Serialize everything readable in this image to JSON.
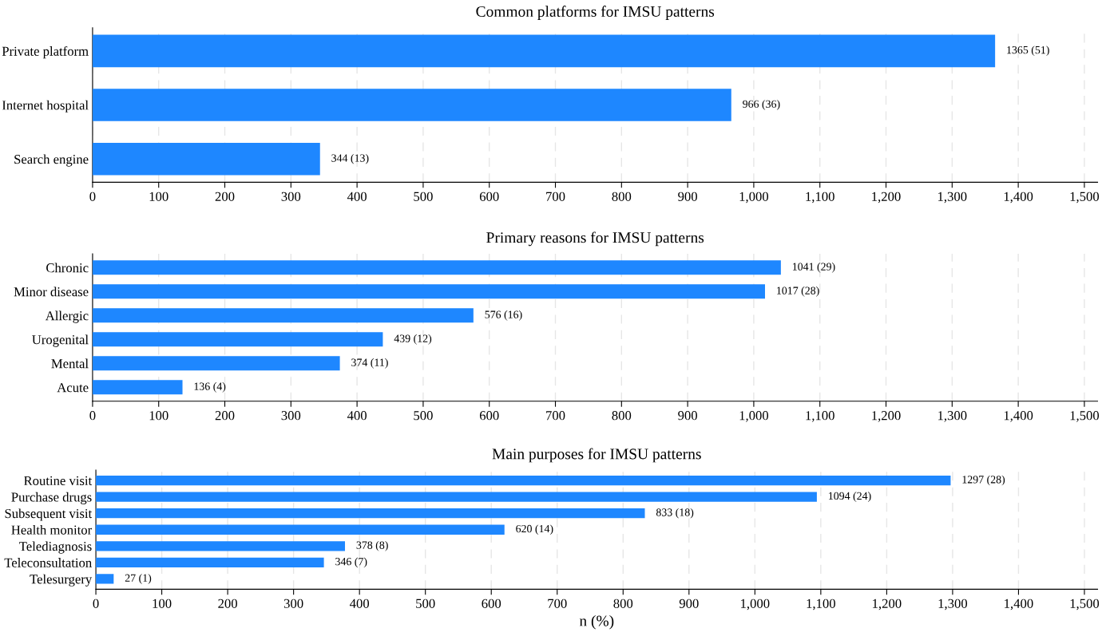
{
  "chart_data": [
    {
      "type": "bar",
      "orientation": "horizontal",
      "title": "Common platforms for IMSU patterns",
      "categories": [
        "Private platform",
        "Internet hospital",
        "Search engine"
      ],
      "values": [
        1365,
        966,
        344
      ],
      "value_labels": [
        "1365 (51)",
        "966 (36)",
        "344 (13)"
      ],
      "color": "#1e87ff",
      "xlim": [
        0,
        1520
      ],
      "xticks": [
        0,
        100,
        200,
        300,
        400,
        500,
        600,
        700,
        800,
        900,
        {
          "value": 1000,
          "label": "1,000"
        },
        {
          "value": 1100,
          "label": "1,100"
        },
        {
          "value": 1200,
          "label": "1,200"
        },
        {
          "value": 1300,
          "label": "1,300"
        },
        {
          "value": 1400,
          "label": "1,400"
        },
        {
          "value": 1500,
          "label": "1,500"
        }
      ],
      "grid": "x",
      "legend": false
    },
    {
      "type": "bar",
      "orientation": "horizontal",
      "title": "Primary reasons for IMSU patterns",
      "categories": [
        "Chronic",
        "Minor disease",
        "Allergic",
        "Urogenital",
        "Mental",
        "Acute"
      ],
      "values": [
        1041,
        1017,
        576,
        439,
        374,
        136
      ],
      "value_labels": [
        "1041 (29)",
        "1017 (28)",
        "576 (16)",
        "439 (12)",
        "374 (11)",
        "136 (4)"
      ],
      "color": "#1e87ff",
      "xlim": [
        0,
        1520
      ],
      "xticks": [
        0,
        100,
        200,
        300,
        400,
        500,
        600,
        700,
        800,
        900,
        {
          "value": 1000,
          "label": "1,000"
        },
        {
          "value": 1100,
          "label": "1,100"
        },
        {
          "value": 1200,
          "label": "1,200"
        },
        {
          "value": 1300,
          "label": "1,300"
        },
        {
          "value": 1400,
          "label": "1,400"
        },
        {
          "value": 1500,
          "label": "1,500"
        }
      ],
      "grid": "x",
      "legend": false
    },
    {
      "type": "bar",
      "orientation": "horizontal",
      "title": "Main purposes for IMSU patterns",
      "xlabel": "n (%)",
      "categories": [
        "Routine visit",
        "Purchase drugs",
        "Subsequent visit",
        "Health monitor",
        "Telediagnosis",
        "Teleconsultation",
        "Telesurgery"
      ],
      "values": [
        1297,
        1094,
        833,
        620,
        378,
        346,
        27
      ],
      "value_labels": [
        "1297 (28)",
        "1094 (24)",
        "833 (18)",
        "620 (14)",
        "378 (8)",
        "346 (7)",
        "27 (1)"
      ],
      "color": "#1e87ff",
      "xlim": [
        0,
        1520
      ],
      "xticks": [
        0,
        100,
        200,
        300,
        400,
        500,
        600,
        700,
        800,
        900,
        {
          "value": 1000,
          "label": "1,000"
        },
        {
          "value": 1100,
          "label": "1,100"
        },
        {
          "value": 1200,
          "label": "1,200"
        },
        {
          "value": 1300,
          "label": "1,300"
        },
        {
          "value": 1400,
          "label": "1,400"
        },
        {
          "value": 1500,
          "label": "1,500"
        }
      ],
      "grid": "x",
      "legend": false
    }
  ]
}
